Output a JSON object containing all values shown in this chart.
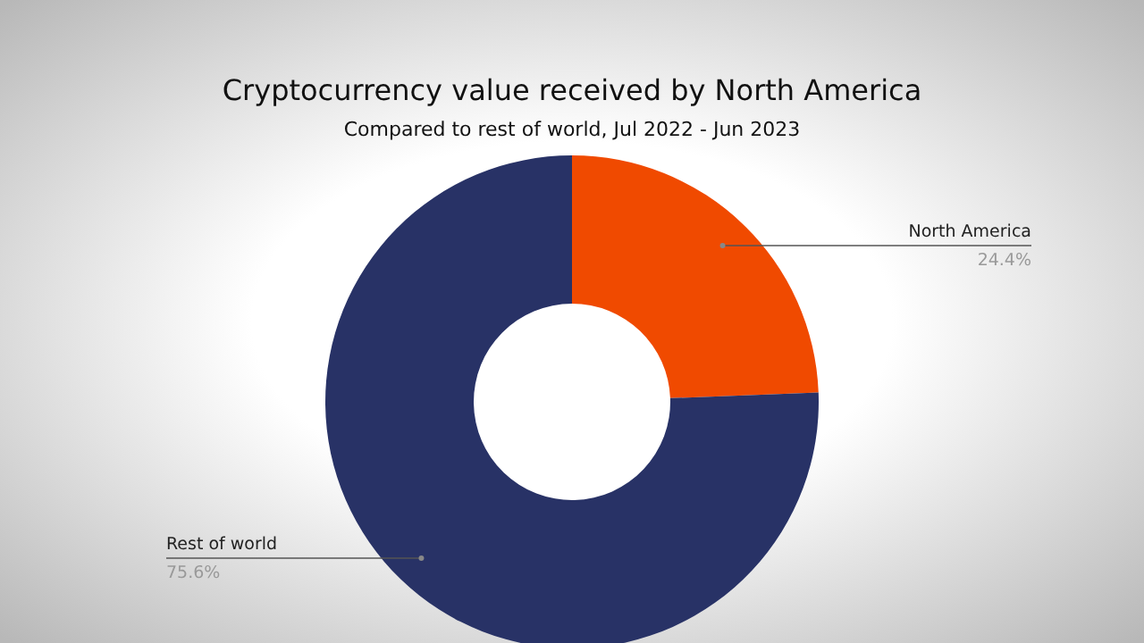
{
  "chart_data": {
    "type": "donut",
    "title": "Cryptocurrency value received by North America",
    "subtitle": "Compared to rest of world, Jul 2022 - Jun 2023",
    "categories": [
      "North America",
      "Rest of world"
    ],
    "values": [
      24.4,
      75.6
    ],
    "colors": [
      "#f04a00",
      "#283266"
    ],
    "value_labels": [
      "24.4%",
      "75.6%"
    ]
  }
}
